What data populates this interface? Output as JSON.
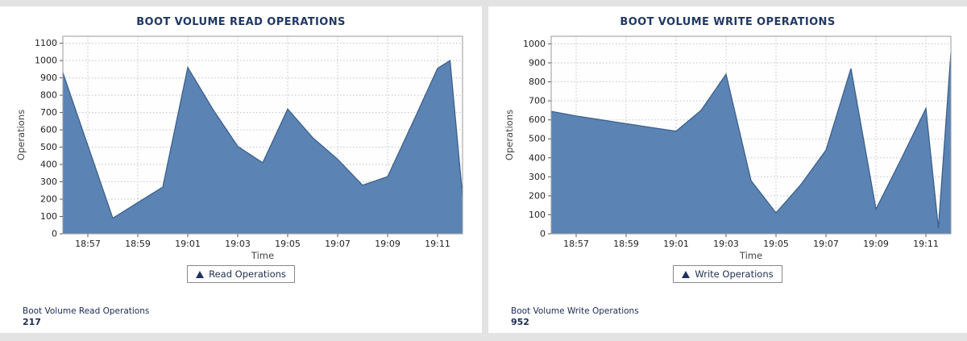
{
  "chart_data": [
    {
      "type": "area",
      "title": "BOOT VOLUME READ OPERATIONS",
      "xlabel": "Time",
      "ylabel": "Operations",
      "legend": "Read Operations",
      "ylim": [
        0,
        1100
      ],
      "ytick_step": 100,
      "x_range": [
        0,
        16
      ],
      "x_ticks": [
        {
          "pos": 1,
          "label": "18:57"
        },
        {
          "pos": 3,
          "label": "18:59"
        },
        {
          "pos": 5,
          "label": "19:01"
        },
        {
          "pos": 7,
          "label": "19:03"
        },
        {
          "pos": 9,
          "label": "19:05"
        },
        {
          "pos": 11,
          "label": "19:07"
        },
        {
          "pos": 13,
          "label": "19:09"
        },
        {
          "pos": 15,
          "label": "19:11"
        }
      ],
      "points": [
        [
          0,
          930
        ],
        [
          1,
          510
        ],
        [
          2,
          90
        ],
        [
          3,
          180
        ],
        [
          4,
          270
        ],
        [
          5,
          960
        ],
        [
          6,
          720
        ],
        [
          7,
          505
        ],
        [
          8,
          410
        ],
        [
          9,
          720
        ],
        [
          10,
          555
        ],
        [
          11,
          430
        ],
        [
          12,
          280
        ],
        [
          13,
          330
        ],
        [
          14,
          640
        ],
        [
          15,
          955
        ],
        [
          15.5,
          1000
        ],
        [
          16,
          217
        ]
      ],
      "colors": {
        "fill": "#5b84b4",
        "stroke": "#3c608c"
      },
      "grid": true,
      "legend_position": "bottom",
      "summary_label": "Boot Volume Read Operations",
      "summary_value": "217"
    },
    {
      "type": "area",
      "title": "BOOT VOLUME WRITE OPERATIONS",
      "xlabel": "Time",
      "ylabel": "Operations",
      "legend": "Write Operations",
      "ylim": [
        0,
        1000
      ],
      "ytick_step": 100,
      "x_range": [
        0,
        16
      ],
      "x_ticks": [
        {
          "pos": 1,
          "label": "18:57"
        },
        {
          "pos": 3,
          "label": "18:59"
        },
        {
          "pos": 5,
          "label": "19:01"
        },
        {
          "pos": 7,
          "label": "19:03"
        },
        {
          "pos": 9,
          "label": "19:05"
        },
        {
          "pos": 11,
          "label": "19:07"
        },
        {
          "pos": 13,
          "label": "19:09"
        },
        {
          "pos": 15,
          "label": "19:11"
        }
      ],
      "points": [
        [
          0,
          645
        ],
        [
          1,
          620
        ],
        [
          2,
          600
        ],
        [
          3,
          580
        ],
        [
          4,
          560
        ],
        [
          5,
          540
        ],
        [
          6,
          650
        ],
        [
          7,
          840
        ],
        [
          8,
          280
        ],
        [
          9,
          110
        ],
        [
          10,
          260
        ],
        [
          11,
          440
        ],
        [
          12,
          870
        ],
        [
          13,
          130
        ],
        [
          14,
          390
        ],
        [
          15,
          660
        ],
        [
          15.5,
          30
        ],
        [
          16,
          952
        ]
      ],
      "colors": {
        "fill": "#5b84b4",
        "stroke": "#3c608c"
      },
      "grid": true,
      "legend_position": "bottom",
      "summary_label": "Boot Volume Write Operations",
      "summary_value": "952"
    }
  ]
}
